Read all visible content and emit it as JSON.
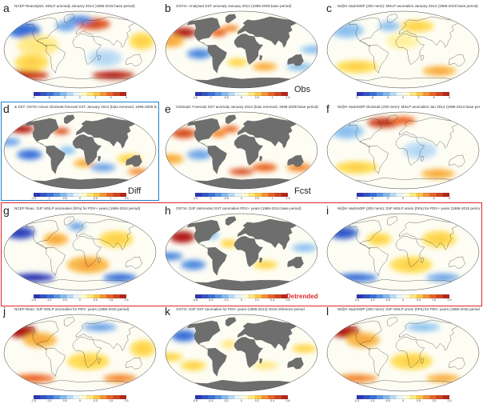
{
  "panels": [
    {
      "letter": "a",
      "title": "NCEP Reanalysis: MSLP anomaly January 2014 (1986-2015 base period)",
      "field": "mslp_obs",
      "ticks": [
        "-9",
        "-6",
        "-3",
        "0",
        "3",
        "6",
        "9"
      ]
    },
    {
      "letter": "b",
      "title": "OSTIA: Analysed SST anomaly January 2014 (1996-2009 base period)",
      "field": "sst_obs",
      "ticks": [
        "-1.5",
        "-1",
        "-0.5",
        "0",
        "0.5",
        "1",
        "1.5"
      ]
    },
    {
      "letter": "c",
      "title": "W@H HadAM3P (200 mem): MSLP anomalies January 2014 (1986-2015 base period)",
      "field": "mslp_model",
      "ticks": [
        "-9",
        "-6",
        "-3",
        "0",
        "3",
        "6",
        "9"
      ]
    },
    {
      "letter": "d",
      "title": "& SST: OSTIA minus GloSea5 forecast SST January 2014 (bias removed, 1996-2009 base)",
      "field": "sst_diff",
      "ticks": [
        "-1.5",
        "-1",
        "-0.5",
        "0",
        "0.5",
        "1",
        "1.5"
      ]
    },
    {
      "letter": "e",
      "title": "GloSea5: Forecast SST anomaly January 2014 (bias removed, 1996-2009 base period)",
      "field": "sst_fcst",
      "ticks": [
        "-1.5",
        "-1",
        "-0.5",
        "0",
        "0.5",
        "1",
        "1.5"
      ]
    },
    {
      "letter": "f",
      "title": "W@H HadAM3P GloSea5 (200 mem): MSLP anomalies Jan 2014 (1986-2014 base period)",
      "field": "mslp_model2",
      "ticks": [
        "-9",
        "-6",
        "-3",
        "0",
        "3",
        "6",
        "9"
      ]
    },
    {
      "letter": "g",
      "title": "NCEP Rean. DJF MSLP anomalies (hPa) for PDV+ years (1986-2015 period)",
      "field": "mslp_pdvp",
      "ticks": [
        "-2.5",
        "-1.5",
        "-0.5",
        "0",
        "0.5",
        "1.5",
        "2.5"
      ]
    },
    {
      "letter": "h",
      "title": "OSTIA: DJF detrended SST anomalies PDV+ years (1986-2014 base period)",
      "field": "sst_pdvp",
      "ticks": [
        "-0.8",
        "-0.4",
        "-0.2",
        "0",
        "0.2",
        "0.4",
        "0.8"
      ]
    },
    {
      "letter": "i",
      "title": "W@H HadAM3P (200 mem): DJF MSLP anom (hPa) for PDV+ years (1986-2015 period)",
      "field": "mslp_pdvp_model",
      "ticks": [
        "-2.5",
        "-1.5",
        "-0.5",
        "0",
        "0.5",
        "1.5",
        "2.5"
      ]
    },
    {
      "letter": "j",
      "title": "NCEP Rean. DJF MSLP anomalies for PDV- years (1986-2015 period)",
      "field": "mslp_pdvm",
      "ticks": [
        "-2.5",
        "-1.5",
        "-0.5",
        "0",
        "0.5",
        "1.5",
        "2.5"
      ]
    },
    {
      "letter": "k",
      "title": "OSTIA: DJF SST anomalies for PDV- years (1986-2014) 2015 reference period",
      "field": "sst_pdvm",
      "ticks": [
        "-0.8",
        "-0.4",
        "-0.2",
        "0",
        "0.2",
        "0.4",
        "0.8"
      ]
    },
    {
      "letter": "l",
      "title": "W@H HadAM3P (200 mem): DJF MSLP anom (hPa) for PDV- years (1986-2015 period)",
      "field": "mslp_pdvm_model",
      "ticks": [
        "-2.5",
        "-1.5",
        "-0.5",
        "0",
        "0.5",
        "1.5",
        "2.5"
      ]
    }
  ],
  "labels": {
    "obs": "Obs",
    "diff": "Diff",
    "fcst": "Fcst",
    "detrended": "Detrended"
  },
  "colors": {
    "frame_blue": "#1e7fc8",
    "frame_red": "#e0262c",
    "detrended_text": "#e0262c",
    "land_mask": "#6e6e6e"
  }
}
